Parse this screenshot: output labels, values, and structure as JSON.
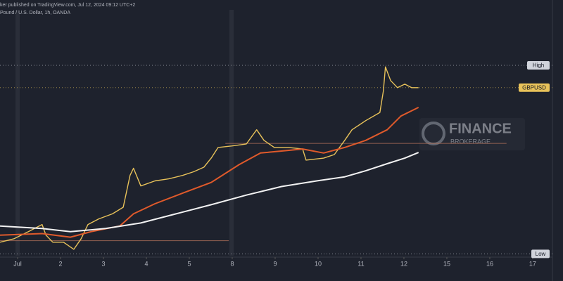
{
  "header": {
    "publisher": "ker published on TradingView.com, Jul 12, 2024 09:12 UTC+2",
    "symbol": "Pound / U.S. Dollar, 1h, OANDA"
  },
  "watermark": {
    "title": "FINANCE",
    "subtitle": "BROKERAGE"
  },
  "chart_data": {
    "type": "line",
    "xlim": [
      -0.41,
      12.46
    ],
    "ylim": [
      1.2613,
      1.3119
    ],
    "xticks": [
      {
        "value": 0,
        "label": "Jul"
      },
      {
        "value": 1,
        "label": "2"
      },
      {
        "value": 2,
        "label": "3"
      },
      {
        "value": 3,
        "label": "4"
      },
      {
        "value": 4,
        "label": "5"
      },
      {
        "value": 5,
        "label": "8"
      },
      {
        "value": 6,
        "label": "9"
      },
      {
        "value": 7,
        "label": "10"
      },
      {
        "value": 8,
        "label": "11"
      },
      {
        "value": 9,
        "label": "12"
      },
      {
        "value": 10,
        "label": "15"
      },
      {
        "value": 11,
        "label": "16"
      },
      {
        "value": 12,
        "label": "17"
      }
    ],
    "series": [
      {
        "name": "GBPUSD",
        "color": "#e8c25a",
        "x": [
          -0.41,
          -0.08,
          0.25,
          0.57,
          0.66,
          0.82,
          1.07,
          1.31,
          1.48,
          1.64,
          1.89,
          2.21,
          2.46,
          2.62,
          2.7,
          2.87,
          3.2,
          3.52,
          3.85,
          4.1,
          4.34,
          4.51,
          4.67,
          5.0,
          5.33,
          5.57,
          5.74,
          5.98,
          6.31,
          6.64,
          6.72,
          7.13,
          7.38,
          7.62,
          7.79,
          8.11,
          8.44,
          8.52,
          8.57,
          8.69,
          8.85,
          9.02,
          9.18,
          9.34
        ],
        "values": [
          1.2641,
          1.2648,
          1.2662,
          1.2676,
          1.2655,
          1.2641,
          1.2641,
          1.2627,
          1.2648,
          1.2676,
          1.2687,
          1.2697,
          1.271,
          1.2773,
          1.2787,
          1.2752,
          1.2762,
          1.2766,
          1.2773,
          1.278,
          1.2789,
          1.2807,
          1.2828,
          1.2831,
          1.2835,
          1.2863,
          1.2842,
          1.2828,
          1.2828,
          1.2825,
          1.2803,
          1.2807,
          1.2814,
          1.2842,
          1.2863,
          1.2881,
          1.2897,
          1.2939,
          1.2987,
          1.296,
          1.2946,
          1.2953,
          1.2946,
          1.2946
        ]
      },
      {
        "color": "#e05a2b",
        "x": [
          -0.41,
          0.57,
          1.23,
          1.72,
          2.38,
          2.7,
          3.2,
          3.85,
          4.51,
          5.16,
          5.66,
          6.15,
          6.64,
          7.13,
          7.62,
          8.11,
          8.61,
          8.93,
          9.34
        ],
        "values": [
          1.2655,
          1.2658,
          1.2651,
          1.2662,
          1.2673,
          1.2697,
          1.2717,
          1.2738,
          1.2759,
          1.2794,
          1.2817,
          1.2821,
          1.2825,
          1.2817,
          1.2828,
          1.2842,
          1.2863,
          1.289,
          1.2907
        ]
      },
      {
        "color": "#f2f2f2",
        "x": [
          -0.41,
          0.57,
          1.23,
          2.05,
          2.87,
          3.69,
          4.51,
          5.33,
          6.15,
          6.97,
          7.62,
          8.11,
          8.61,
          9.02,
          9.34
        ],
        "values": [
          1.2673,
          1.2668,
          1.2662,
          1.2668,
          1.2679,
          1.2697,
          1.2715,
          1.2734,
          1.2751,
          1.2762,
          1.277,
          1.2782,
          1.2796,
          1.2807,
          1.2818
        ]
      }
    ],
    "levels": [
      {
        "value": 1.2644,
        "x": [
          -0.41,
          4.92
        ]
      },
      {
        "value": 1.2836,
        "x": [
          4.84,
          11.39
        ]
      }
    ],
    "markers": [
      {
        "label": "High",
        "value": 1.299
      },
      {
        "label": "GBPUSD",
        "value": 1.2946
      },
      {
        "label": "Low",
        "value": 1.2618
      }
    ]
  }
}
